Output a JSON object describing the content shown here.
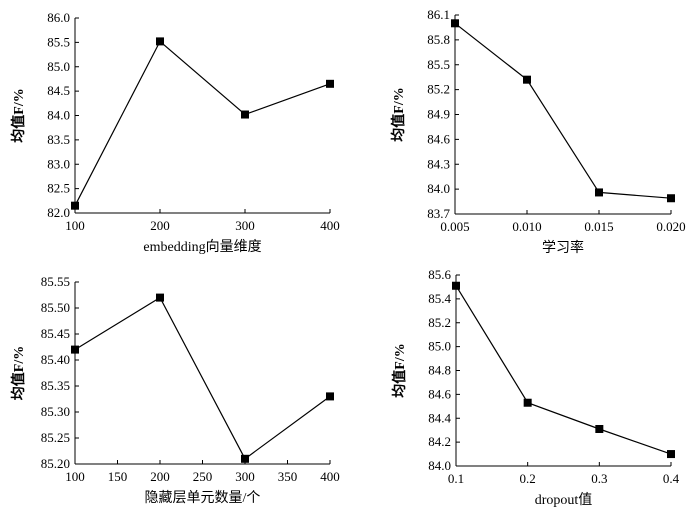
{
  "chart_data": [
    {
      "type": "line",
      "xlabel": "embedding向量维度",
      "ylabel": "均值F/%",
      "x": [
        100,
        200,
        300,
        400
      ],
      "series": [
        {
          "values": [
            82.15,
            85.52,
            84.02,
            84.65
          ]
        }
      ],
      "xlim": [
        100,
        400
      ],
      "ylim": [
        82.0,
        86.0
      ],
      "xticks": [
        "100",
        "200",
        "300",
        "400"
      ],
      "yticks": [
        "82.0",
        "82.5",
        "83.0",
        "83.5",
        "84.0",
        "84.5",
        "85.0",
        "85.5",
        "86.0"
      ],
      "grid": false
    },
    {
      "type": "line",
      "xlabel": "学习率",
      "ylabel": "均值F/%",
      "x": [
        0.005,
        0.01,
        0.015,
        0.02
      ],
      "series": [
        {
          "values": [
            86.0,
            85.32,
            83.96,
            83.89
          ]
        }
      ],
      "xlim": [
        0.005,
        0.02
      ],
      "ylim": [
        83.7,
        86.1
      ],
      "xticks": [
        "0.005",
        "0.010",
        "0.015",
        "0.020"
      ],
      "yticks": [
        "83.7",
        "84.0",
        "84.3",
        "84.6",
        "84.9",
        "85.2",
        "85.5",
        "85.8",
        "86.1"
      ],
      "grid": false
    },
    {
      "type": "line",
      "xlabel": "隐藏层单元数量/个",
      "ylabel": "均值F/%",
      "x": [
        100,
        200,
        300,
        400
      ],
      "series": [
        {
          "values": [
            85.42,
            85.52,
            85.21,
            85.33
          ]
        }
      ],
      "xlim": [
        100,
        400
      ],
      "ylim": [
        85.2,
        85.55
      ],
      "xticks": [
        "100",
        "150",
        "200",
        "250",
        "300",
        "350",
        "400"
      ],
      "yticks": [
        "85.20",
        "85.25",
        "85.30",
        "85.35",
        "85.40",
        "85.45",
        "85.50",
        "85.55"
      ],
      "grid": false
    },
    {
      "type": "line",
      "xlabel": "dropout值",
      "ylabel": "均值F/%",
      "x": [
        0.1,
        0.2,
        0.3,
        0.4
      ],
      "series": [
        {
          "values": [
            85.51,
            84.53,
            84.31,
            84.1
          ]
        }
      ],
      "xlim": [
        0.1,
        0.4
      ],
      "ylim": [
        84.0,
        85.6
      ],
      "xticks": [
        "0.1",
        "0.2",
        "0.3",
        "0.4"
      ],
      "yticks": [
        "84.0",
        "84.2",
        "84.4",
        "84.6",
        "84.8",
        "85.0",
        "85.2",
        "85.4",
        "85.6"
      ],
      "grid": false
    }
  ]
}
